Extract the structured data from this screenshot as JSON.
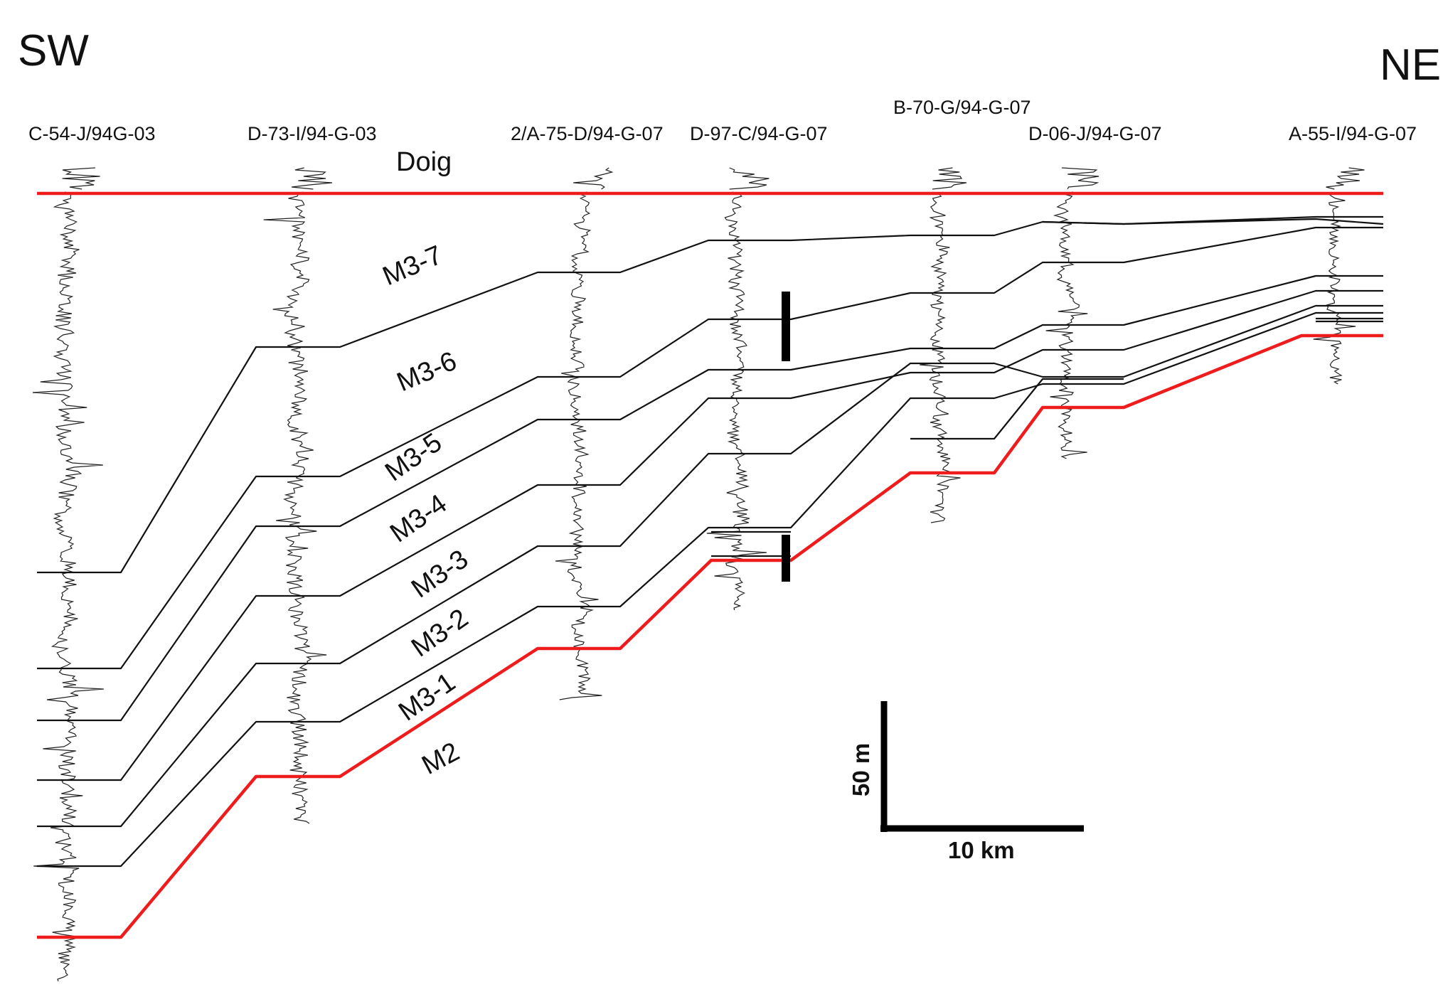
{
  "directions": {
    "left": "SW",
    "right": "NE"
  },
  "wells": [
    {
      "id": "w1",
      "name": "C-54-J/94G-03"
    },
    {
      "id": "w2",
      "name": "D-73-I/94-G-03"
    },
    {
      "id": "w3",
      "name": "2/A-75-D/94-G-07"
    },
    {
      "id": "w4",
      "name": "D-97-C/94-G-07"
    },
    {
      "id": "w5",
      "name": "B-70-G/94-G-07"
    },
    {
      "id": "w6",
      "name": "D-06-J/94-G-07"
    },
    {
      "id": "w7",
      "name": "A-55-I/94-G-07"
    }
  ],
  "top_marker": "Doig",
  "units": [
    "M3-7",
    "M3-6",
    "M3-5",
    "M3-4",
    "M3-3",
    "M3-2",
    "M3-1",
    "M2"
  ],
  "scale": {
    "vertical": "50 m",
    "horizontal": "10 km"
  },
  "colors": {
    "boundary": "#ee1c1c",
    "correlation": "#111111",
    "log_trace": "#222222"
  }
}
